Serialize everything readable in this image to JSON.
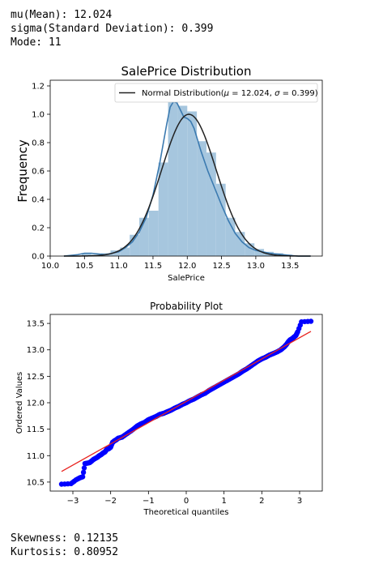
{
  "top_stats": [
    {
      "label": "mu(Mean):",
      "value": "12.024"
    },
    {
      "label": "sigma(Standard Deviation):",
      "value": "0.399"
    },
    {
      "label": "Mode:",
      "value": "11"
    }
  ],
  "bottom_stats": [
    {
      "label": "Skewness:",
      "value": "0.12135"
    },
    {
      "label": "Kurtosis:",
      "value": "0.80952"
    }
  ],
  "colors": {
    "hist_fill": "#a6c6de",
    "kde_line": "#3b7ab0",
    "normal_line": "#222222",
    "qq_points": "#0000ff",
    "qq_line": "#e8231f"
  },
  "chart_data": [
    {
      "type": "bar",
      "title": "SalePrice Distribution",
      "xlabel": "SalePrice",
      "ylabel": "Frequency",
      "xlim": [
        10.0,
        13.97
      ],
      "ylim": [
        0.0,
        1.24
      ],
      "xticks": [
        10.0,
        10.5,
        11.0,
        11.5,
        12.0,
        12.5,
        13.0,
        13.5
      ],
      "xtick_labels": [
        "10.0",
        "10.5",
        "11.0",
        "11.5",
        "12.0",
        "12.5",
        "13.0",
        "13.5"
      ],
      "yticks": [
        0.0,
        0.2,
        0.4,
        0.6,
        0.8,
        1.0,
        1.2
      ],
      "ytick_labels": [
        "0.0",
        "0.2",
        "0.4",
        "0.6",
        "0.8",
        "1.0",
        "1.2"
      ],
      "legend": "Normal Distribution($\\mu=$12.024, $\\sigma=$0.399)",
      "legend_prefix": "Normal Distribution(",
      "legend_mu": "μ",
      "legend_mu_value": " = 12.024, ",
      "legend_sigma": "σ",
      "legend_sigma_value": " = 0.399)",
      "legend_position": "upper right",
      "histogram": {
        "bin_edges": [
          10.46,
          10.6,
          10.74,
          10.88,
          11.02,
          11.16,
          11.3,
          11.44,
          11.58,
          11.72,
          11.86,
          12.0,
          12.14,
          12.28,
          12.42,
          12.56,
          12.7,
          12.84,
          12.98,
          13.12,
          13.26,
          13.4,
          13.53
        ],
        "heights": [
          0.02,
          0.01,
          0.02,
          0.04,
          0.06,
          0.15,
          0.27,
          0.32,
          0.66,
          1.09,
          1.06,
          1.02,
          0.81,
          0.73,
          0.51,
          0.27,
          0.17,
          0.09,
          0.05,
          0.03,
          0.02,
          0.01
        ]
      },
      "kde": {
        "x": [
          10.2,
          10.4,
          10.5,
          10.6,
          10.8,
          11.0,
          11.1,
          11.2,
          11.3,
          11.4,
          11.5,
          11.6,
          11.7,
          11.75,
          11.8,
          11.85,
          11.9,
          11.95,
          12.0,
          12.05,
          12.1,
          12.15,
          12.2,
          12.3,
          12.4,
          12.5,
          12.6,
          12.7,
          12.8,
          12.9,
          13.0,
          13.2,
          13.4,
          13.6,
          13.8
        ],
        "y": [
          0.0,
          0.01,
          0.02,
          0.02,
          0.01,
          0.03,
          0.06,
          0.1,
          0.17,
          0.27,
          0.43,
          0.66,
          0.93,
          1.05,
          1.09,
          1.08,
          1.03,
          0.98,
          0.97,
          0.95,
          0.9,
          0.82,
          0.74,
          0.6,
          0.48,
          0.36,
          0.25,
          0.16,
          0.1,
          0.06,
          0.04,
          0.02,
          0.01,
          0.0,
          0.0
        ]
      },
      "normal": {
        "mu": 12.024,
        "sigma": 0.399,
        "x_range": [
          10.2,
          13.8
        ]
      }
    },
    {
      "type": "scatter",
      "title": "Probability Plot",
      "xlabel": "Theoretical quantiles",
      "ylabel": "Ordered Values",
      "xlim": [
        -3.6,
        3.6
      ],
      "ylim": [
        10.33,
        13.67
      ],
      "xticks": [
        -3,
        -2,
        -1,
        0,
        1,
        2,
        3
      ],
      "xtick_labels": [
        "−3",
        "−2",
        "−1",
        "0",
        "1",
        "2",
        "3"
      ],
      "yticks": [
        10.5,
        11.0,
        11.5,
        12.0,
        12.5,
        13.0,
        13.5
      ],
      "ytick_labels": [
        "10.5",
        "11.0",
        "11.5",
        "12.0",
        "12.5",
        "13.0",
        "13.5"
      ],
      "points": [
        [
          -3.3,
          10.46
        ],
        [
          -3.05,
          10.47
        ],
        [
          -2.92,
          10.54
        ],
        [
          -2.82,
          10.58
        ],
        [
          -2.74,
          10.6
        ],
        [
          -2.68,
          10.85
        ],
        [
          -2.6,
          10.86
        ],
        [
          -2.55,
          10.87
        ],
        [
          -2.5,
          10.9
        ],
        [
          -2.45,
          10.93
        ],
        [
          -2.4,
          10.95
        ],
        [
          -2.35,
          10.97
        ],
        [
          -2.3,
          11.0
        ],
        [
          -2.25,
          11.02
        ],
        [
          -2.2,
          11.05
        ],
        [
          -2.15,
          11.07
        ],
        [
          -2.1,
          11.12
        ],
        [
          -2.05,
          11.13
        ],
        [
          -2.0,
          11.16
        ],
        [
          -1.95,
          11.25
        ],
        [
          -1.9,
          11.28
        ],
        [
          -1.85,
          11.3
        ],
        [
          -1.8,
          11.33
        ],
        [
          -1.7,
          11.35
        ],
        [
          -1.6,
          11.4
        ],
        [
          -1.5,
          11.45
        ],
        [
          -1.4,
          11.5
        ],
        [
          -1.3,
          11.56
        ],
        [
          -1.2,
          11.6
        ],
        [
          -1.1,
          11.63
        ],
        [
          -1.0,
          11.68
        ],
        [
          -0.9,
          11.71
        ],
        [
          -0.8,
          11.74
        ],
        [
          -0.7,
          11.78
        ],
        [
          -0.6,
          11.8
        ],
        [
          -0.5,
          11.83
        ],
        [
          -0.4,
          11.86
        ],
        [
          -0.3,
          11.9
        ],
        [
          -0.2,
          11.93
        ],
        [
          -0.1,
          11.97
        ],
        [
          0.0,
          12.0
        ],
        [
          0.1,
          12.04
        ],
        [
          0.2,
          12.07
        ],
        [
          0.3,
          12.11
        ],
        [
          0.4,
          12.15
        ],
        [
          0.5,
          12.18
        ],
        [
          0.6,
          12.23
        ],
        [
          0.7,
          12.27
        ],
        [
          0.8,
          12.31
        ],
        [
          0.9,
          12.35
        ],
        [
          1.0,
          12.39
        ],
        [
          1.1,
          12.43
        ],
        [
          1.2,
          12.47
        ],
        [
          1.3,
          12.51
        ],
        [
          1.4,
          12.55
        ],
        [
          1.5,
          12.6
        ],
        [
          1.6,
          12.64
        ],
        [
          1.7,
          12.69
        ],
        [
          1.8,
          12.74
        ],
        [
          1.9,
          12.79
        ],
        [
          2.0,
          12.83
        ],
        [
          2.1,
          12.86
        ],
        [
          2.2,
          12.9
        ],
        [
          2.3,
          12.93
        ],
        [
          2.4,
          12.96
        ],
        [
          2.5,
          13.0
        ],
        [
          2.55,
          13.03
        ],
        [
          2.6,
          13.06
        ],
        [
          2.65,
          13.1
        ],
        [
          2.7,
          13.15
        ],
        [
          2.75,
          13.19
        ],
        [
          2.8,
          13.21
        ],
        [
          2.85,
          13.24
        ],
        [
          2.9,
          13.27
        ],
        [
          2.95,
          13.34
        ],
        [
          3.05,
          13.53
        ],
        [
          3.3,
          13.54
        ]
      ],
      "fit_line": {
        "x": [
          -3.3,
          3.3
        ],
        "y": [
          10.7,
          13.35
        ]
      }
    }
  ]
}
